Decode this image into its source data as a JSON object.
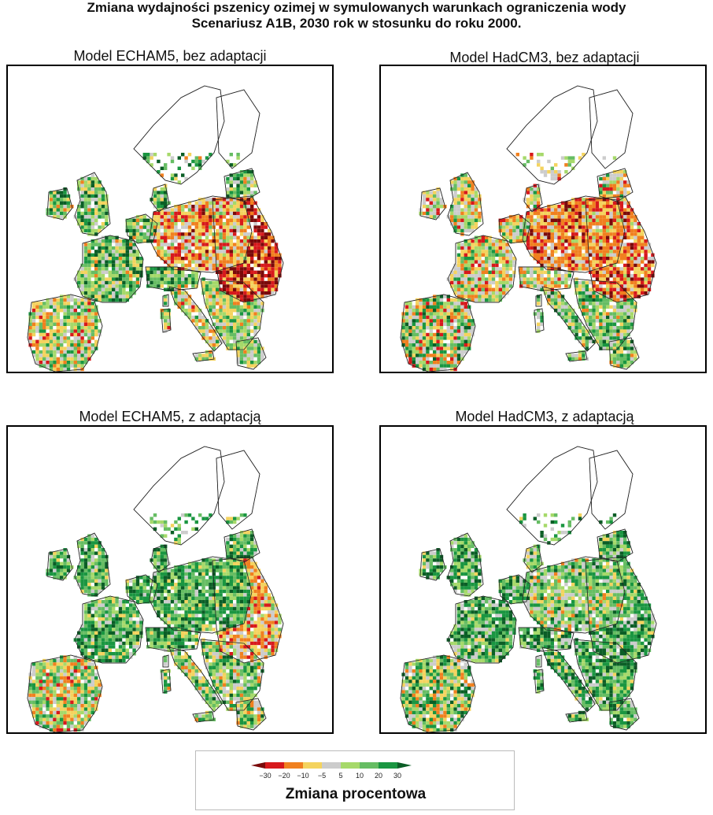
{
  "header": {
    "title_line1": "Zmiana wydajności pszenicy ozimej w symulowanych warunkach ograniczenia wody",
    "title_line2": "Scenariusz A1B, 2030 rok w stosunku do roku 2000."
  },
  "panels": [
    {
      "title": "Model ECHAM5, bez adaptacji",
      "dominant_change": "negative",
      "hotspot": "strong-decrease-east"
    },
    {
      "title": "Model HadCM3, bez adaptacji",
      "dominant_change": "negative",
      "hotspot": "decrease-central-east"
    },
    {
      "title": "Model ECHAM5, z adaptacją",
      "dominant_change": "positive",
      "hotspot": "decrease-east-south"
    },
    {
      "title": "Model HadCM3, z adaptacją",
      "dominant_change": "positive",
      "hotspot": "mixed-central"
    }
  ],
  "legend": {
    "title": "Zmiana procentowa",
    "ticks": [
      "−30",
      "−20",
      "−10",
      "−5",
      "5",
      "10",
      "20",
      "30"
    ],
    "colors": [
      "#7a0a0a",
      "#d7191c",
      "#f0801f",
      "#f4d35e",
      "#cccccc",
      "#a6d96a",
      "#66bd63",
      "#1a9641",
      "#0b5e26"
    ]
  }
}
